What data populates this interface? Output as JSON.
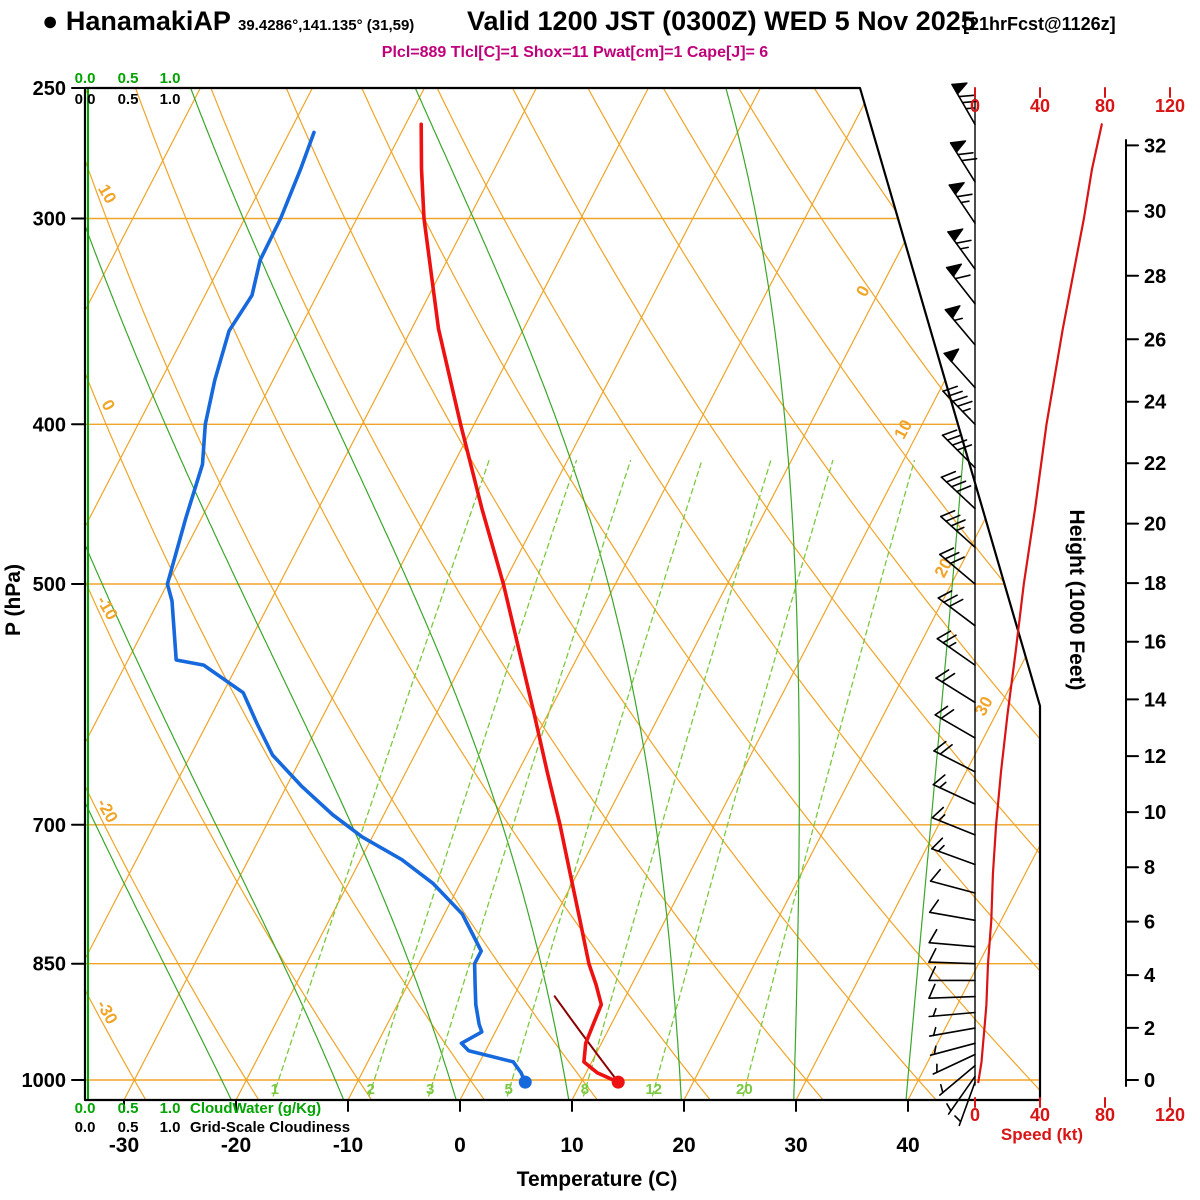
{
  "header": {
    "bullet": "●",
    "station": "HanamakiAP",
    "coords": "39.4286°,141.135° (31,59)",
    "valid": "Valid 1200 JST (0300Z) WED 5 Nov 2025",
    "fcst": "[21hrFcst@1126z]",
    "params": "Plcl=889 Tlcl[C]=1 Shox=11 Pwat[cm]=1 Cape[J]= 6"
  },
  "axes": {
    "pressure_label": "P (hPa)",
    "pressure_ticks": [
      250,
      300,
      400,
      500,
      700,
      850,
      1000
    ],
    "temp_label": "Temperature (C)",
    "temp_ticks": [
      -30,
      -20,
      -10,
      0,
      10,
      20,
      30,
      40
    ],
    "height_label": "Height (1000 Feet)",
    "height_ticks": [
      0,
      2,
      4,
      6,
      8,
      10,
      12,
      14,
      16,
      18,
      20,
      22,
      24,
      26,
      28,
      30,
      32
    ],
    "speed_label": "Speed (kt)",
    "speed_ticks": [
      0,
      40,
      80,
      120
    ],
    "isotherm_labels": [
      0,
      10,
      20,
      30
    ],
    "dry_adiabat_labels": [
      10,
      0,
      -10,
      -20,
      -30
    ],
    "mixing_ratio_labels": [
      1,
      2,
      3,
      5,
      8,
      12,
      20
    ],
    "moist_adiabats_C": [
      -20,
      -10,
      0,
      10,
      20,
      30,
      40
    ],
    "dry_adiabat_range_C": [
      -30,
      150
    ],
    "isotherm_range_C": [
      -90,
      40
    ]
  },
  "scales": {
    "cloudwater": {
      "ticks": [
        "0.0",
        "0.5",
        "1.0"
      ],
      "label": "CloudWater (g/Kg)"
    },
    "cloudiness": {
      "ticks": [
        "0.0",
        "0.5",
        "1.0"
      ],
      "label": "Grid-Scale Cloudiness"
    }
  },
  "colors": {
    "isotherm": "#f0a428",
    "moist": "#3aa62a",
    "mixing": "#7cc83e",
    "cloudwater": "#00a400",
    "temperature": "#ee1111",
    "dewpoint": "#1668dd",
    "speed": "#d81414",
    "parcel": "#8b0000",
    "barb": "#000000",
    "params": "#c0007a"
  },
  "chart_data": {
    "type": "line",
    "subtype": "skew-t-log-p-sounding",
    "title": "HanamakiAP sounding valid 1200 JST WED 5 Nov 2025",
    "pressure_range_hPa": [
      250,
      1030
    ],
    "temp_range_C": [
      -35,
      45
    ],
    "speed_range_kt": [
      0,
      120
    ],
    "height_range_kft": [
      0,
      33
    ],
    "surface": {
      "pressure_hPa": 1003,
      "temp_C": 13.3,
      "dewpoint_C": 5.0
    },
    "parcel": {
      "p_lcl_hPa": 889,
      "t_lcl_C": 1
    },
    "temperature_profile": {
      "pressure_hPa": [
        1003,
        990,
        975,
        950,
        925,
        900,
        875,
        850,
        800,
        750,
        700,
        650,
        600,
        550,
        500,
        450,
        400,
        350,
        300,
        280,
        263
      ],
      "temp_C": [
        13.3,
        11.0,
        9.3,
        8.6,
        8.4,
        8.2,
        6.8,
        5.2,
        2.4,
        -0.6,
        -3.8,
        -7.4,
        -11.2,
        -15.4,
        -20.0,
        -25.4,
        -31.2,
        -37.6,
        -44.0,
        -46.5,
        -48.6
      ]
    },
    "dewpoint_profile": {
      "pressure_hPa": [
        1003,
        990,
        975,
        960,
        950,
        935,
        925,
        900,
        875,
        850,
        835,
        793,
        760,
        735,
        712,
        690,
        663,
        635,
        608,
        582,
        560,
        556,
        512,
        500,
        456,
        423,
        400,
        376,
        351,
        334,
        318,
        300,
        280,
        266
      ],
      "temp_C": [
        5.0,
        4.2,
        3.0,
        -1.5,
        -2.5,
        -1.2,
        -1.8,
        -3.0,
        -4.0,
        -5.0,
        -5.0,
        -8.4,
        -12.4,
        -16.3,
        -20.9,
        -24.6,
        -28.7,
        -32.7,
        -35.5,
        -38.2,
        -43.0,
        -45.7,
        -48.8,
        -50.0,
        -51.4,
        -52.4,
        -54.0,
        -55.2,
        -56.2,
        -55.8,
        -56.7,
        -56.8,
        -57.3,
        -57.8
      ]
    },
    "wind_speed_profile": {
      "pressure_hPa": [
        1003,
        975,
        950,
        925,
        900,
        850,
        800,
        750,
        700,
        650,
        600,
        550,
        500,
        450,
        400,
        350,
        300,
        280,
        263
      ],
      "speed_kt": [
        2,
        4,
        5,
        6,
        7,
        8,
        10,
        11,
        13,
        16,
        20,
        25,
        30,
        37,
        44,
        54,
        67,
        72,
        78
      ]
    },
    "wind_barbs": {
      "columns": [
        "pressure_hPa",
        "dir_deg",
        "speed_kt"
      ],
      "rows": [
        [
          263,
          330,
          75
        ],
        [
          285,
          328,
          70
        ],
        [
          302,
          326,
          65
        ],
        [
          322,
          324,
          62
        ],
        [
          338,
          322,
          58
        ],
        [
          358,
          320,
          53
        ],
        [
          380,
          318,
          48
        ],
        [
          400,
          316,
          45
        ],
        [
          425,
          315,
          41
        ],
        [
          450,
          313,
          37
        ],
        [
          475,
          312,
          33
        ],
        [
          500,
          310,
          30
        ],
        [
          530,
          307,
          27
        ],
        [
          560,
          305,
          24
        ],
        [
          590,
          302,
          21
        ],
        [
          620,
          300,
          19
        ],
        [
          650,
          297,
          17
        ],
        [
          680,
          295,
          15
        ],
        [
          710,
          292,
          13
        ],
        [
          740,
          290,
          12
        ],
        [
          770,
          285,
          11
        ],
        [
          800,
          280,
          10
        ],
        [
          830,
          275,
          9
        ],
        [
          850,
          272,
          8
        ],
        [
          870,
          270,
          7
        ],
        [
          890,
          268,
          7
        ],
        [
          910,
          265,
          6
        ],
        [
          930,
          260,
          6
        ],
        [
          950,
          255,
          5
        ],
        [
          965,
          245,
          5
        ],
        [
          980,
          230,
          4
        ],
        [
          995,
          215,
          4
        ],
        [
          1003,
          200,
          3
        ]
      ]
    }
  }
}
